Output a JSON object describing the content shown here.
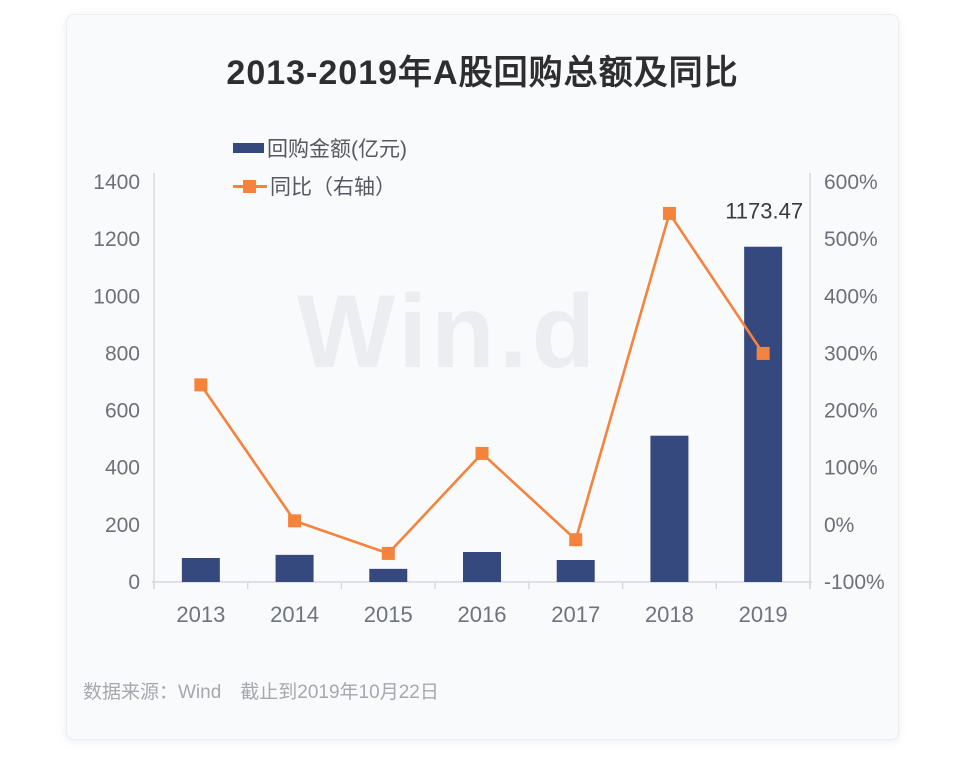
{
  "watermark": {
    "text": "Win.d"
  },
  "footer": {
    "text": "数据来源：Wind　截止到2019年10月22日"
  },
  "colors": {
    "bar": "#36497e",
    "line": "#f5833c",
    "axis": "#d5d8dd",
    "tick_label": "#6d7077",
    "category_label": "#6f737a",
    "annotation": "#3a3a3c"
  },
  "chart_data": {
    "type": "bar",
    "subtype": "bar+line dual-axis",
    "title": "2013-2019年A股回购总额及同比",
    "categories": [
      "2013",
      "2014",
      "2015",
      "2016",
      "2017",
      "2018",
      "2019"
    ],
    "series": [
      {
        "name": "回购金额(亿元)",
        "type": "bar",
        "axis": "left",
        "values": [
          84,
          95,
          46,
          105,
          77,
          512,
          1173.47
        ]
      },
      {
        "name": "同比（右轴）",
        "type": "line",
        "axis": "right",
        "values": [
          245,
          7,
          -50,
          125,
          -26,
          545,
          300
        ]
      }
    ],
    "left_axis": {
      "min": 0,
      "max": 1400,
      "step": 200,
      "suffix": ""
    },
    "right_axis": {
      "min": -100,
      "max": 600,
      "step": 100,
      "suffix": "%"
    },
    "annotations": [
      {
        "text": "1173.47",
        "category_index": 6
      }
    ],
    "legend_position": "top-left",
    "grid": false
  }
}
